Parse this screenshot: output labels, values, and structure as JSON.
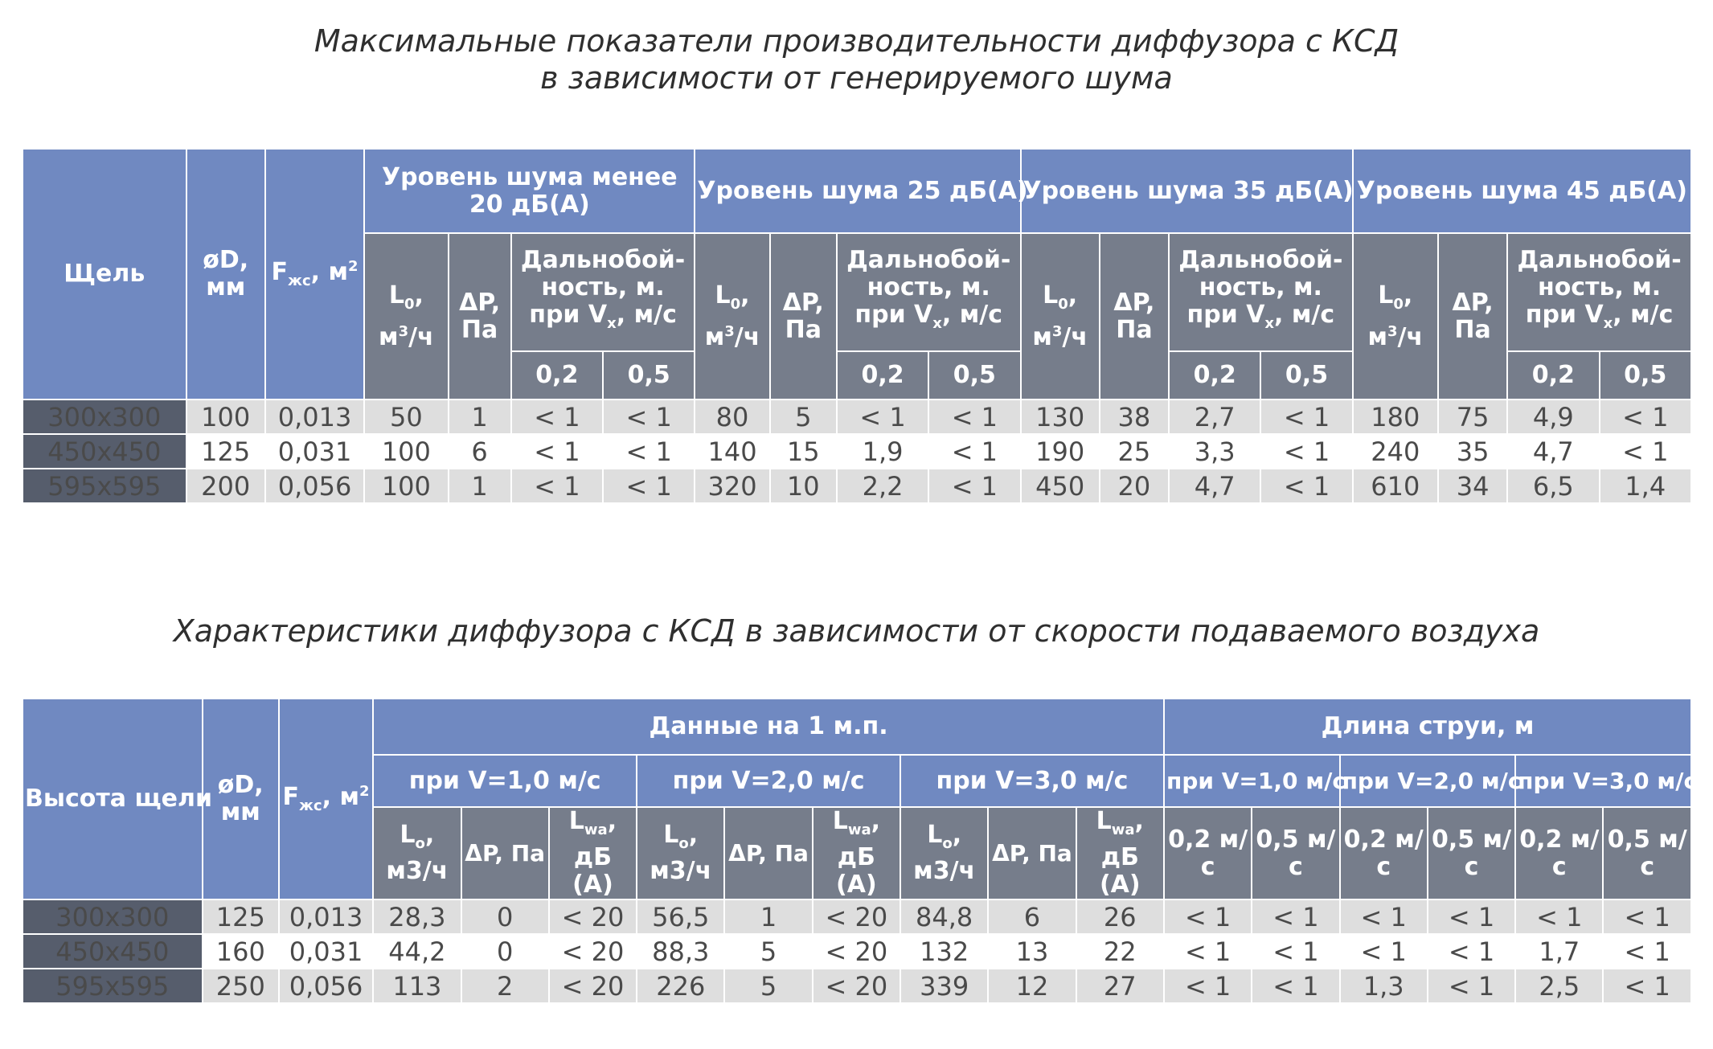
{
  "title1_line1": "Максимальные показатели производительности диффузора с КСД",
  "title1_line2": "в зависимости от генерируемого шума",
  "title2": "Характеристики диффузора с КСД  в зависимости от скорости подаваемого воздуха",
  "table1": {
    "h_slot": "Щель",
    "h_d": "øD, мм",
    "h_f": "F",
    "h_f_sub": "жс",
    "h_f_unit": ", м",
    "h_f_sup": "2",
    "groups": [
      "Уровень шума менее 20 дБ(А)",
      "Уровень шума 25 дБ(А)",
      "Уровень шума 35 дБ(А)",
      "Уровень шума 45 дБ(А)"
    ],
    "h_l": "L",
    "h_l_sub": "0",
    "h_l_unit": ", м",
    "h_l_sup": "3",
    "h_l_tail": "/ч",
    "h_dp": "ΔP, Па",
    "h_range": "Дальнобой-ность, м. при V",
    "h_range_sub": "x",
    "h_range_tail": ", м/с",
    "v1": "0,2",
    "v2": "0,5",
    "rows": [
      {
        "slot": "300x300",
        "d": "100",
        "f": "0,013",
        "c": [
          "50",
          "1",
          "< 1",
          "< 1",
          "80",
          "5",
          "< 1",
          "< 1",
          "130",
          "38",
          "2,7",
          "< 1",
          "180",
          "75",
          "4,9",
          "< 1"
        ]
      },
      {
        "slot": "450x450",
        "d": "125",
        "f": "0,031",
        "c": [
          "100",
          "6",
          "< 1",
          "< 1",
          "140",
          "15",
          "1,9",
          "< 1",
          "190",
          "25",
          "3,3",
          "< 1",
          "240",
          "35",
          "4,7",
          "< 1"
        ]
      },
      {
        "slot": "595x595",
        "d": "200",
        "f": "0,056",
        "c": [
          "100",
          "1",
          "< 1",
          "< 1",
          "320",
          "10",
          "2,2",
          "< 1",
          "450",
          "20",
          "4,7",
          "< 1",
          "610",
          "34",
          "6,5",
          "1,4"
        ]
      }
    ]
  },
  "table2": {
    "h_height": "Высота щели",
    "h_d": "øD, мм",
    "h_f": "F",
    "h_f_sub": "жс",
    "h_f_unit": ", м",
    "h_f_sup": "2",
    "group_data": "Данные на 1 м.п.",
    "group_jet": "Длина струи, м",
    "speeds": [
      "при V=1,0 м/с",
      "при V=2,0 м/с",
      "при V=3,0 м/с"
    ],
    "h_l": "L",
    "h_l_sub": "o",
    "h_l_unit": ", м3/ч",
    "h_dp": "ΔP, Па",
    "h_lwa": "L",
    "h_lwa_sub": "wa",
    "h_lwa_unit": ", дБ (А)",
    "h_v02": "0,2 м/с",
    "h_v05": "0,5 м/с",
    "rows": [
      {
        "slot": "300x300",
        "d": "125",
        "f": "0,013",
        "c": [
          "28,3",
          "0",
          "< 20",
          "56,5",
          "1",
          "< 20",
          "84,8",
          "6",
          "26",
          "< 1",
          "< 1",
          "< 1",
          "< 1",
          "< 1",
          "< 1"
        ]
      },
      {
        "slot": "450x450",
        "d": "160",
        "f": "0,031",
        "c": [
          "44,2",
          "0",
          "< 20",
          "88,3",
          "5",
          "< 20",
          "132",
          "13",
          "22",
          "< 1",
          "< 1",
          "< 1",
          "< 1",
          "1,7",
          "< 1"
        ]
      },
      {
        "slot": "595x595",
        "d": "250",
        "f": "0,056",
        "c": [
          "113",
          "2",
          "< 20",
          "226",
          "5",
          "< 20",
          "339",
          "12",
          "27",
          "< 1",
          "< 1",
          "1,3",
          "< 1",
          "2,5",
          "< 1"
        ]
      }
    ]
  }
}
